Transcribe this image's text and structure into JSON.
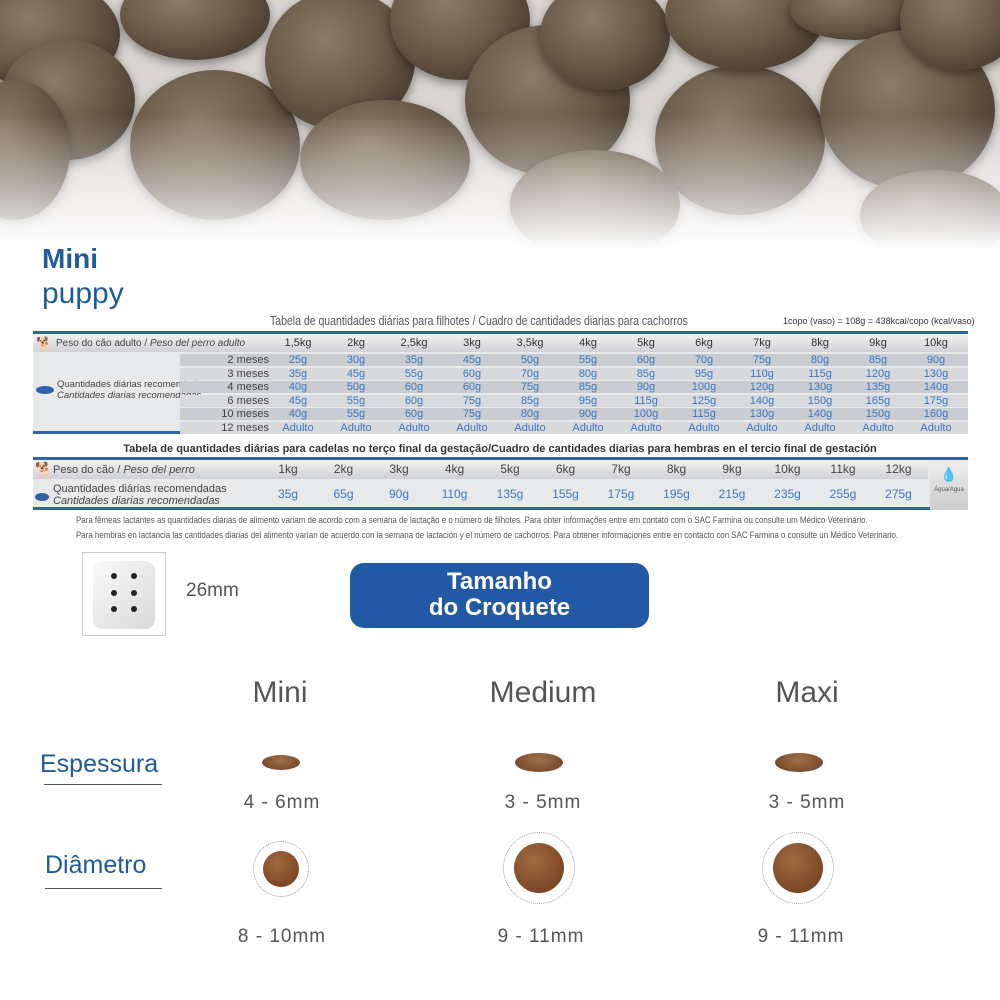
{
  "brand": {
    "line1": "Mini",
    "line2": "puppy"
  },
  "puppy_table": {
    "title": "Tabela de quantidades diárias para filhotes / Cuadro de cantidades diarias para cachorros",
    "cup_note": "1copo (vaso) = 108g = 438kcal/copo (kcal/vaso)",
    "weight_label": "Peso do cão adulto / ",
    "weight_label_es": "Peso del perro adulto",
    "qty_label": "Quantidades diárias recomendadas",
    "qty_label_es": "Cantidades diarias recomendadas",
    "weights": [
      "1,5kg",
      "2kg",
      "2,5kg",
      "3kg",
      "3,5kg",
      "4kg",
      "5kg",
      "6kg",
      "7kg",
      "8kg",
      "9kg",
      "10kg"
    ],
    "rows": [
      {
        "age": "2 meses",
        "values": [
          "25g",
          "30g",
          "35g",
          "45g",
          "50g",
          "55g",
          "60g",
          "70g",
          "75g",
          "80g",
          "85g",
          "90g"
        ]
      },
      {
        "age": "3 meses",
        "values": [
          "35g",
          "45g",
          "55g",
          "60g",
          "70g",
          "80g",
          "85g",
          "95g",
          "110g",
          "115g",
          "120g",
          "130g"
        ]
      },
      {
        "age": "4 meses",
        "values": [
          "40g",
          "50g",
          "60g",
          "60g",
          "75g",
          "85g",
          "90g",
          "100g",
          "120g",
          "130g",
          "135g",
          "140g"
        ]
      },
      {
        "age": "6 meses",
        "values": [
          "45g",
          "55g",
          "60g",
          "75g",
          "85g",
          "95g",
          "115g",
          "125g",
          "140g",
          "150g",
          "165g",
          "175g"
        ]
      },
      {
        "age": "10 meses",
        "values": [
          "40g",
          "55g",
          "60g",
          "75g",
          "80g",
          "90g",
          "100g",
          "115g",
          "130g",
          "140g",
          "150g",
          "160g"
        ]
      },
      {
        "age": "12 meses",
        "values": [
          "Adulto",
          "Adulto",
          "Adulto",
          "Adulto",
          "Adulto",
          "Adulto",
          "Adulto",
          "Adulto",
          "Adulto",
          "Adulto",
          "Adulto",
          "Adulto"
        ]
      }
    ]
  },
  "gestation_table": {
    "title": "Tabela de quantidades diárias para cadelas no terço final da gestação/Cuadro de cantidades diarias para hembras en el tercio final de gestación",
    "weight_label": "Peso do cão / ",
    "weight_label_es": "Peso del perro",
    "qty_label": "Quantidades diárias recomendadas",
    "qty_label_es": "Cantidades diarias recomendadas",
    "weights": [
      "1kg",
      "2kg",
      "3kg",
      "4kg",
      "5kg",
      "6kg",
      "7kg",
      "8kg",
      "9kg",
      "10kg",
      "11kg",
      "12kg"
    ],
    "values": [
      "35g",
      "65g",
      "90g",
      "110g",
      "135g",
      "155g",
      "175g",
      "195g",
      "215g",
      "235g",
      "255g",
      "275g"
    ],
    "water_label": "Água/Agua"
  },
  "footnotes": [
    "Para fêmeas lactantes as quantidades diárias de alimento variam de acordo com a semana de lactação e o número de filhotes. Para obter informações entre em contato com o SAC Farmina ou consulte um Médico Veterinário.",
    "Para hembras en lactancia las cantidades diarias del alimento varían de acuerdo con la semana de lactación y el número de cachorros. Para obtener informaciones entre en contacto con SAC Farmina o consulte un Médico Veterinario."
  ],
  "die_size": "26mm",
  "kibble_button": {
    "line1": "Tamanho",
    "line2": "do Croquete"
  },
  "kibble_sizes": {
    "thickness_label": "Espessura",
    "diameter_label": "Diâmetro",
    "columns": [
      {
        "name": "Mini",
        "thickness": "4 - 6mm",
        "diameter": "8 - 10mm"
      },
      {
        "name": "Medium",
        "thickness": "3 - 5mm",
        "diameter": "9 - 11mm"
      },
      {
        "name": "Maxi",
        "thickness": "3 - 5mm",
        "diameter": "9 - 11mm"
      }
    ]
  },
  "colors": {
    "brand_blue": "#1f5a99",
    "button_blue": "#2159a5",
    "value_blue": "#3a78c0"
  }
}
